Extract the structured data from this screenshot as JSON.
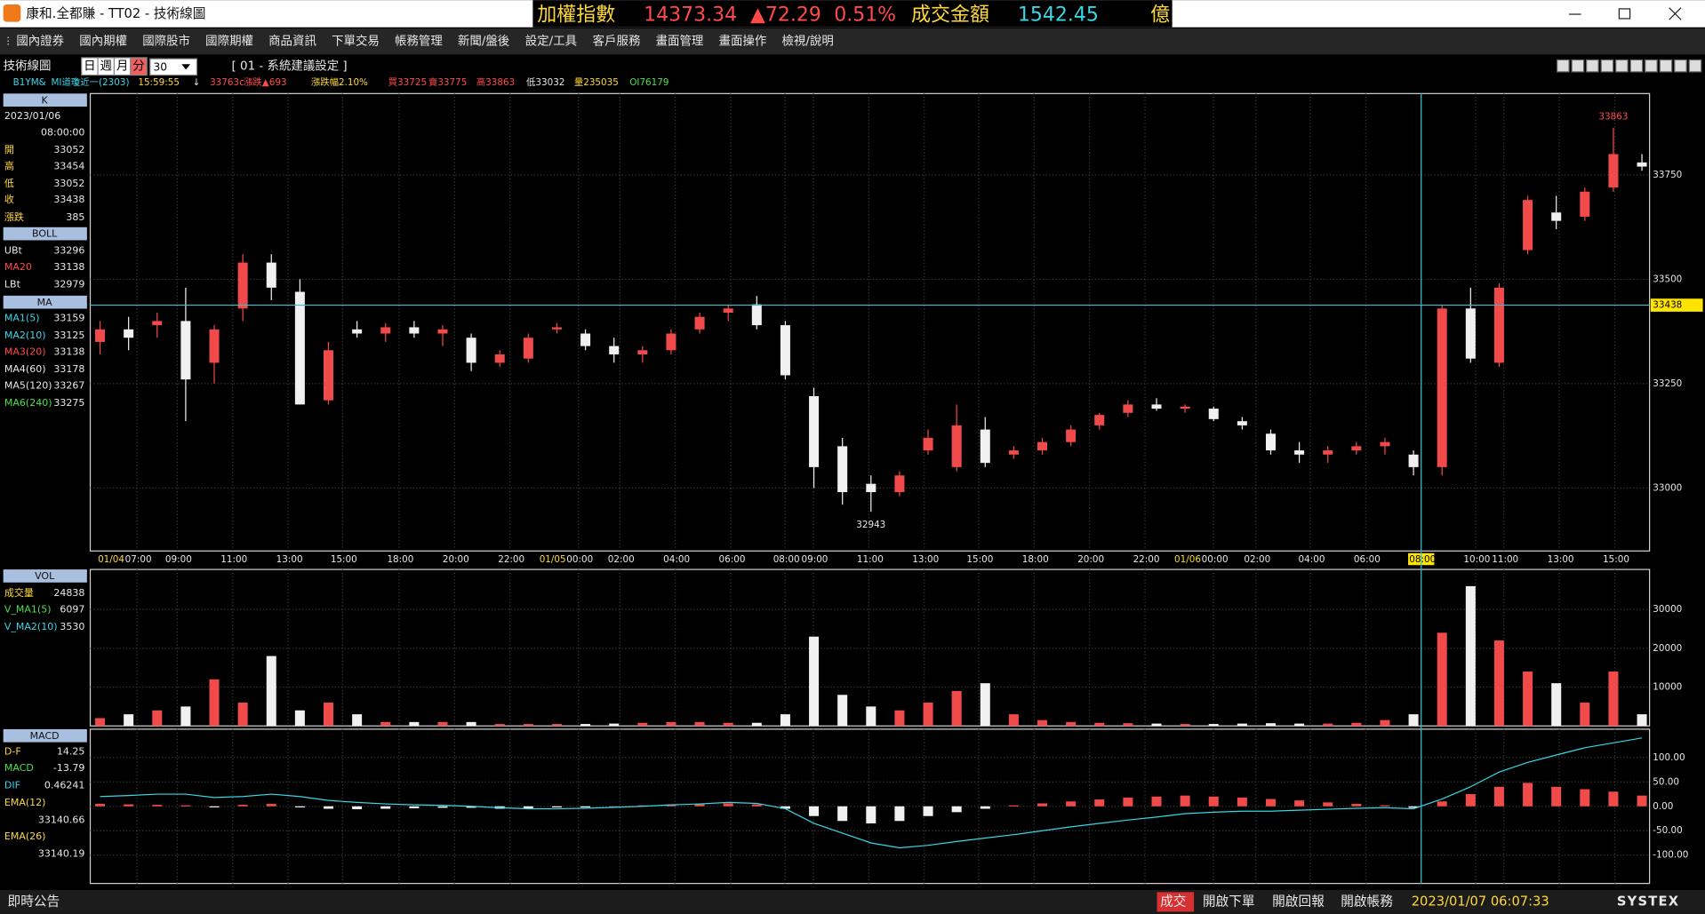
{
  "window": {
    "title": "康和.全都賺 - TT02 - 技術線圖",
    "ticker": {
      "name": "加權指數",
      "index": "14373.34",
      "change": "▲72.29",
      "percent": "0.51%",
      "turnover_label": "成交金額",
      "turnover": "1542.45",
      "unit": "億"
    }
  },
  "menu": [
    "國內證券",
    "國內期權",
    "國際股市",
    "國際期權",
    "商品資訊",
    "下單交易",
    "帳務管理",
    "新聞/盤後",
    "設定/工具",
    "客戶服務",
    "畫面管理",
    "畫面操作",
    "檢視/說明"
  ],
  "toolbar": {
    "label": "技術線圖",
    "periods": [
      "日",
      "週",
      "月",
      "分"
    ],
    "interval": "30",
    "preset": "[ 01 - 系統建議設定 ]"
  },
  "info": [
    "B1YM&",
    "MI道瓊近一(2303)",
    "15:59:55",
    "↓",
    "33763c",
    "漲跌▲693",
    "漲跌幅2.10%",
    "買33725",
    "賣33775",
    "高33863",
    "低33032",
    "量235035",
    "OI76179"
  ],
  "left_panel": {
    "k": {
      "header": "K",
      "date": "2023/01/06",
      "time": "08:00:00",
      "rows": [
        {
          "name": "開",
          "value": "33052"
        },
        {
          "name": "高",
          "value": "33454"
        },
        {
          "name": "低",
          "value": "33052"
        },
        {
          "name": "收",
          "value": "33438"
        },
        {
          "name": "漲跌",
          "value": "385"
        }
      ]
    },
    "boll": {
      "header": "BOLL",
      "rows": [
        {
          "name": "UBt",
          "value": "33296"
        },
        {
          "name": "MA20",
          "value": "33138"
        },
        {
          "name": "LBt",
          "value": "32979"
        }
      ]
    },
    "ma": {
      "header": "MA",
      "rows": [
        {
          "name": "MA1(5)",
          "value": "33159"
        },
        {
          "name": "MA2(10)",
          "value": "33125"
        },
        {
          "name": "MA3(20)",
          "value": "33138"
        },
        {
          "name": "MA4(60)",
          "value": "33178"
        },
        {
          "name": "MA5(120)",
          "value": "33267"
        },
        {
          "name": "MA6(240)",
          "value": "33275"
        }
      ]
    },
    "vol": {
      "header": "VOL",
      "rows": [
        {
          "name": "成交量",
          "value": "24838"
        },
        {
          "name": "V_MA1(5)",
          "value": "6097"
        },
        {
          "name": "V_MA2(10)",
          "value": "3530"
        }
      ]
    },
    "macd": {
      "header": "MACD",
      "rows": [
        {
          "name": "D-F",
          "value": "14.25"
        },
        {
          "name": "MACD",
          "value": "-13.79"
        },
        {
          "name": "DIF",
          "value": "0.46241"
        },
        {
          "name": "EMA(12)",
          "value": "33140.66"
        },
        {
          "name": "EMA(26)",
          "value": "33140.19"
        }
      ]
    }
  },
  "chart": {
    "type": "candlestick",
    "time_labels": [
      "01/04",
      "07:00",
      "09:00",
      "11:00",
      "13:00",
      "15:00",
      "18:00",
      "20:00",
      "22:00",
      "01/05",
      "00:00",
      "02:00",
      "04:00",
      "06:00",
      "08:00",
      "09:00",
      "11:00",
      "13:00",
      "15:00",
      "18:00",
      "20:00",
      "22:00",
      "01/06",
      "00:00",
      "02:00",
      "04:00",
      "06:00",
      "08:00",
      "10:00",
      "11:00",
      "13:00",
      "15:00"
    ],
    "ylim": [
      32849,
      33945
    ],
    "yticks": [
      33000,
      33250,
      33500,
      33750
    ],
    "crosshair_price": 33438,
    "high_label": 33863,
    "low_label": 32943,
    "candles": [
      [
        33350,
        33400,
        33320,
        33380
      ],
      [
        33380,
        33410,
        33330,
        33360
      ],
      [
        33390,
        33420,
        33360,
        33400
      ],
      [
        33400,
        33480,
        33160,
        33260
      ],
      [
        33300,
        33390,
        33250,
        33380
      ],
      [
        33430,
        33560,
        33400,
        33540
      ],
      [
        33540,
        33560,
        33450,
        33480
      ],
      [
        33470,
        33500,
        33200,
        33200
      ],
      [
        33210,
        33350,
        33200,
        33330
      ],
      [
        33380,
        33400,
        33360,
        33370
      ],
      [
        33370,
        33395,
        33350,
        33385
      ],
      [
        33385,
        33400,
        33360,
        33370
      ],
      [
        33370,
        33390,
        33340,
        33380
      ],
      [
        33360,
        33370,
        33280,
        33300
      ],
      [
        33300,
        33330,
        33290,
        33320
      ],
      [
        33310,
        33370,
        33300,
        33360
      ],
      [
        33380,
        33395,
        33370,
        33385
      ],
      [
        33370,
        33380,
        33330,
        33340
      ],
      [
        33340,
        33360,
        33300,
        33320
      ],
      [
        33320,
        33340,
        33300,
        33330
      ],
      [
        33330,
        33380,
        33320,
        33370
      ],
      [
        33380,
        33420,
        33370,
        33410
      ],
      [
        33420,
        33440,
        33400,
        33430
      ],
      [
        33440,
        33460,
        33380,
        33390
      ],
      [
        33390,
        33400,
        33260,
        33270
      ],
      [
        33220,
        33240,
        33000,
        33050
      ],
      [
        33100,
        33120,
        32960,
        32990
      ],
      [
        33010,
        33030,
        32943,
        32990
      ],
      [
        32990,
        33040,
        32980,
        33030
      ],
      [
        33090,
        33140,
        33080,
        33120
      ],
      [
        33050,
        33200,
        33040,
        33150
      ],
      [
        33140,
        33170,
        33050,
        33060
      ],
      [
        33080,
        33100,
        33070,
        33090
      ],
      [
        33090,
        33120,
        33080,
        33110
      ],
      [
        33110,
        33150,
        33100,
        33140
      ],
      [
        33150,
        33180,
        33140,
        33175
      ],
      [
        33180,
        33210,
        33170,
        33200
      ],
      [
        33200,
        33215,
        33185,
        33190
      ],
      [
        33190,
        33200,
        33180,
        33195
      ],
      [
        33190,
        33195,
        33160,
        33165
      ],
      [
        33160,
        33170,
        33140,
        33150
      ],
      [
        33130,
        33140,
        33080,
        33090
      ],
      [
        33090,
        33110,
        33060,
        33080
      ],
      [
        33080,
        33100,
        33060,
        33090
      ],
      [
        33090,
        33110,
        33080,
        33100
      ],
      [
        33100,
        33120,
        33080,
        33110
      ],
      [
        33080,
        33090,
        33030,
        33050
      ],
      [
        33050,
        33440,
        33030,
        33430
      ],
      [
        33430,
        33480,
        33300,
        33310
      ],
      [
        33300,
        33490,
        33290,
        33480
      ],
      [
        33570,
        33700,
        33560,
        33690
      ],
      [
        33660,
        33700,
        33620,
        33640
      ],
      [
        33650,
        33720,
        33640,
        33710
      ],
      [
        33720,
        33863,
        33710,
        33800
      ],
      [
        33780,
        33800,
        33760,
        33770
      ]
    ],
    "volume": {
      "ylim": [
        0,
        40300
      ],
      "yticks": [
        10000,
        20000,
        30000
      ],
      "values": [
        2000,
        3000,
        4000,
        5000,
        12000,
        6000,
        18000,
        4000,
        6000,
        3000,
        1000,
        1000,
        1000,
        1000,
        500,
        500,
        500,
        500,
        600,
        800,
        1000,
        1000,
        800,
        800,
        3000,
        23000,
        8000,
        5000,
        4000,
        6000,
        9000,
        11000,
        3000,
        1500,
        1000,
        800,
        700,
        600,
        500,
        500,
        600,
        700,
        600,
        600,
        800,
        1500,
        3000,
        24000,
        36000,
        22000,
        14000,
        11000,
        6000,
        14000,
        3000
      ]
    },
    "macd": {
      "ylim": [
        -158,
        158
      ],
      "yticks": [
        {
          "value": 100,
          "label": "100.00"
        },
        {
          "value": 50,
          "label": "50.00"
        },
        {
          "value": 0,
          "label": "0.00"
        },
        {
          "value": -50,
          "label": "-50.00"
        },
        {
          "value": -100,
          "label": "-100.00"
        }
      ],
      "osc": [
        5,
        4,
        3,
        2,
        -1,
        3,
        5,
        -2,
        -5,
        -6,
        -5,
        -4,
        -3,
        -3,
        -5,
        -4,
        -2,
        -1,
        0,
        2,
        4,
        5,
        6,
        4,
        -5,
        -20,
        -30,
        -35,
        -30,
        -20,
        -12,
        -5,
        2,
        6,
        10,
        14,
        18,
        20,
        22,
        20,
        18,
        15,
        12,
        8,
        5,
        2,
        -3,
        10,
        25,
        40,
        48,
        40,
        35,
        30,
        22
      ],
      "dif": [
        20,
        22,
        25,
        25,
        18,
        20,
        25,
        20,
        12,
        8,
        5,
        3,
        2,
        0,
        -3,
        -5,
        -5,
        -4,
        -2,
        0,
        3,
        5,
        8,
        6,
        -5,
        -35,
        -55,
        -75,
        -85,
        -80,
        -72,
        -65,
        -58,
        -50,
        -42,
        -35,
        -28,
        -22,
        -15,
        -12,
        -10,
        -10,
        -8,
        -6,
        -4,
        -3,
        -5,
        15,
        40,
        70,
        90,
        105,
        120,
        130,
        140
      ]
    }
  },
  "status": {
    "notice": "即時公告",
    "buttons": [
      "成交",
      "開啟下單",
      "開啟回報",
      "開啟帳務"
    ],
    "datetime": "2023/01/07 06:07:33",
    "brand": "SYSTEX"
  }
}
